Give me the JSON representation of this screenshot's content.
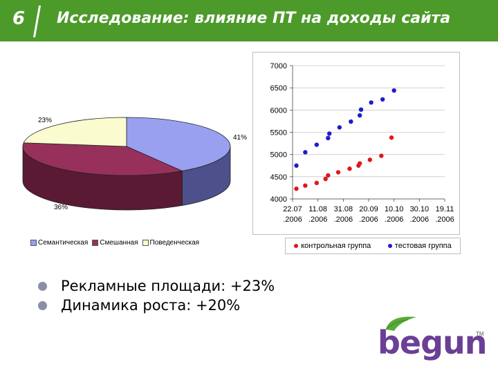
{
  "slide": {
    "number": "6",
    "title": "Исследование: влияние ПТ на доходы сайта"
  },
  "colors": {
    "title_bar": "#4c9a2a",
    "pie_semantic": "#9aa0f0",
    "pie_mixed": "#97315b",
    "pie_behavioral": "#fbfbd0",
    "control": "#e0171a",
    "test": "#1c1ccf",
    "logo_purple": "#6b3f95",
    "logo_green": "#5aab3a"
  },
  "chart_data": [
    {
      "type": "pie",
      "slices": [
        {
          "label": "Семантическая",
          "value": 41,
          "label_text": "41%"
        },
        {
          "label": "Смешанная",
          "value": 36,
          "label_text": "36%"
        },
        {
          "label": "Поведенческая",
          "value": 23,
          "label_text": "23%"
        }
      ],
      "legend": [
        "Семантическая",
        "Смешанная",
        "Поведенческая"
      ],
      "legend_position": "bottom"
    },
    {
      "type": "scatter",
      "x_tick_labels": [
        [
          "22.07",
          ".2006"
        ],
        [
          "11.08",
          ".2006"
        ],
        [
          "31.08",
          ".2006"
        ],
        [
          "20.09",
          ".2006"
        ],
        [
          "10.10",
          ".2006"
        ],
        [
          "30.10",
          ".2006"
        ],
        [
          "19.11",
          ".2006"
        ]
      ],
      "xlim": [
        "2006-07-22",
        "2006-11-19"
      ],
      "ylim": [
        4000,
        7000
      ],
      "y_ticks": [
        4000,
        4500,
        5000,
        5500,
        6000,
        6500,
        7000
      ],
      "grid": "horizontal",
      "legend_position": "bottom",
      "series": [
        {
          "name": "контрольная группа",
          "color": "#e0171a",
          "points": [
            {
              "x": "2006-07-25",
              "y": 4230
            },
            {
              "x": "2006-08-01",
              "y": 4300
            },
            {
              "x": "2006-08-10",
              "y": 4360
            },
            {
              "x": "2006-08-17",
              "y": 4450
            },
            {
              "x": "2006-08-19",
              "y": 4530
            },
            {
              "x": "2006-08-27",
              "y": 4600
            },
            {
              "x": "2006-09-05",
              "y": 4680
            },
            {
              "x": "2006-09-12",
              "y": 4750
            },
            {
              "x": "2006-09-13",
              "y": 4800
            },
            {
              "x": "2006-09-21",
              "y": 4880
            },
            {
              "x": "2006-09-30",
              "y": 4970
            },
            {
              "x": "2006-10-08",
              "y": 5380
            }
          ]
        },
        {
          "name": "тестовая группа",
          "color": "#1c1ccf",
          "points": [
            {
              "x": "2006-07-25",
              "y": 4750
            },
            {
              "x": "2006-08-01",
              "y": 5050
            },
            {
              "x": "2006-08-10",
              "y": 5220
            },
            {
              "x": "2006-08-19",
              "y": 5370
            },
            {
              "x": "2006-08-20",
              "y": 5470
            },
            {
              "x": "2006-08-28",
              "y": 5610
            },
            {
              "x": "2006-09-06",
              "y": 5740
            },
            {
              "x": "2006-09-13",
              "y": 5880
            },
            {
              "x": "2006-09-14",
              "y": 6010
            },
            {
              "x": "2006-09-22",
              "y": 6170
            },
            {
              "x": "2006-10-01",
              "y": 6240
            },
            {
              "x": "2006-10-10",
              "y": 6440
            }
          ]
        }
      ]
    }
  ],
  "bullets": [
    "Рекламные площади: +23%",
    "Динамика роста: +20%"
  ],
  "logo": {
    "text": "begun",
    "tm": "TM"
  }
}
